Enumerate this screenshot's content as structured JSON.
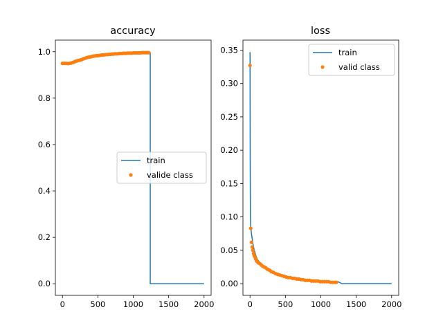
{
  "colors": {
    "train": "#1f77b4",
    "valid": "#ff7f0e",
    "axes": "#000000"
  },
  "chart_data": [
    {
      "type": "line",
      "title": "accuracy",
      "xlabel": "",
      "ylabel": "",
      "xlim": [
        -100,
        2100
      ],
      "ylim": [
        -0.05,
        1.05
      ],
      "xticks": [
        0,
        500,
        1000,
        1500,
        2000
      ],
      "yticks": [
        0.0,
        0.2,
        0.4,
        0.6,
        0.8,
        1.0
      ],
      "ytick_labels": [
        "0.0",
        "0.2",
        "0.4",
        "0.6",
        "0.8",
        "1.0"
      ],
      "legend_position": "center-right",
      "series": [
        {
          "name": "train",
          "type": "line",
          "x": [
            0,
            100,
            150,
            200,
            300,
            400,
            500,
            600,
            700,
            800,
            900,
            1000,
            1100,
            1240,
            1240,
            2000
          ],
          "y": [
            0.95,
            0.95,
            0.953,
            0.96,
            0.968,
            0.977,
            0.983,
            0.987,
            0.99,
            0.992,
            0.994,
            0.995,
            0.996,
            0.996,
            0.0,
            0.0
          ]
        },
        {
          "name": "valide class",
          "type": "scatter",
          "x": [
            0,
            20,
            40,
            60,
            80,
            100,
            120,
            140,
            160,
            180,
            200,
            220,
            240,
            260,
            280,
            300,
            320,
            340,
            360,
            380,
            400,
            420,
            440,
            460,
            480,
            500,
            520,
            540,
            560,
            580,
            600,
            620,
            640,
            660,
            680,
            700,
            720,
            740,
            760,
            780,
            800,
            820,
            840,
            860,
            880,
            900,
            920,
            940,
            960,
            980,
            1000,
            1020,
            1040,
            1060,
            1080,
            1100,
            1120,
            1140,
            1160,
            1180,
            1200,
            1220
          ],
          "y": [
            0.95,
            0.95,
            0.95,
            0.95,
            0.949,
            0.95,
            0.951,
            0.953,
            0.955,
            0.958,
            0.96,
            0.962,
            0.963,
            0.965,
            0.967,
            0.97,
            0.972,
            0.974,
            0.976,
            0.977,
            0.978,
            0.98,
            0.981,
            0.982,
            0.983,
            0.983,
            0.984,
            0.985,
            0.986,
            0.986,
            0.987,
            0.988,
            0.988,
            0.989,
            0.989,
            0.99,
            0.99,
            0.991,
            0.991,
            0.991,
            0.992,
            0.992,
            0.992,
            0.993,
            0.993,
            0.993,
            0.994,
            0.994,
            0.994,
            0.994,
            0.995,
            0.995,
            0.995,
            0.995,
            0.995,
            0.995,
            0.996,
            0.996,
            0.996,
            0.996,
            0.996,
            0.996
          ]
        }
      ]
    },
    {
      "type": "line",
      "title": "loss",
      "xlabel": "",
      "ylabel": "",
      "xlim": [
        -100,
        2100
      ],
      "ylim": [
        -0.0175,
        0.365
      ],
      "xticks": [
        0,
        500,
        1000,
        1500,
        2000
      ],
      "yticks": [
        0.0,
        0.05,
        0.1,
        0.15,
        0.2,
        0.25,
        0.3,
        0.35
      ],
      "ytick_labels": [
        "0.00",
        "0.05",
        "0.10",
        "0.15",
        "0.20",
        "0.25",
        "0.30",
        "0.35"
      ],
      "legend_position": "top-right",
      "series": [
        {
          "name": "train",
          "type": "line",
          "x": [
            0,
            2,
            4,
            6,
            8,
            10,
            15,
            20,
            30,
            40,
            60,
            80,
            100,
            150,
            200,
            300,
            400,
            500,
            600,
            700,
            800,
            900,
            1000,
            1100,
            1200,
            1240,
            1300,
            1500,
            2000
          ],
          "y": [
            0.347,
            0.2,
            0.13,
            0.1,
            0.09,
            0.085,
            0.08,
            0.075,
            0.068,
            0.06,
            0.05,
            0.043,
            0.037,
            0.03,
            0.025,
            0.019,
            0.015,
            0.011,
            0.009,
            0.007,
            0.006,
            0.005,
            0.004,
            0.003,
            0.003,
            0.003,
            0.0,
            0.0,
            0.0
          ]
        },
        {
          "name": "valid class",
          "type": "scatter",
          "x": [
            0,
            10,
            20,
            30,
            40,
            50,
            60,
            70,
            80,
            90,
            100,
            120,
            140,
            160,
            180,
            200,
            220,
            240,
            260,
            280,
            300,
            330,
            360,
            390,
            420,
            450,
            480,
            510,
            540,
            570,
            600,
            630,
            660,
            690,
            720,
            750,
            780,
            810,
            840,
            870,
            900,
            930,
            960,
            990,
            1020,
            1050,
            1080,
            1110,
            1140,
            1170,
            1200,
            1220
          ],
          "y": [
            0.327,
            0.083,
            0.062,
            0.055,
            0.05,
            0.045,
            0.042,
            0.04,
            0.037,
            0.035,
            0.033,
            0.031,
            0.03,
            0.028,
            0.026,
            0.025,
            0.024,
            0.022,
            0.021,
            0.02,
            0.018,
            0.017,
            0.015,
            0.014,
            0.013,
            0.012,
            0.011,
            0.01,
            0.009,
            0.009,
            0.008,
            0.008,
            0.007,
            0.007,
            0.006,
            0.006,
            0.005,
            0.005,
            0.005,
            0.004,
            0.004,
            0.004,
            0.004,
            0.003,
            0.003,
            0.003,
            0.003,
            0.003,
            0.002,
            0.002,
            0.002,
            0.002
          ]
        }
      ]
    }
  ]
}
